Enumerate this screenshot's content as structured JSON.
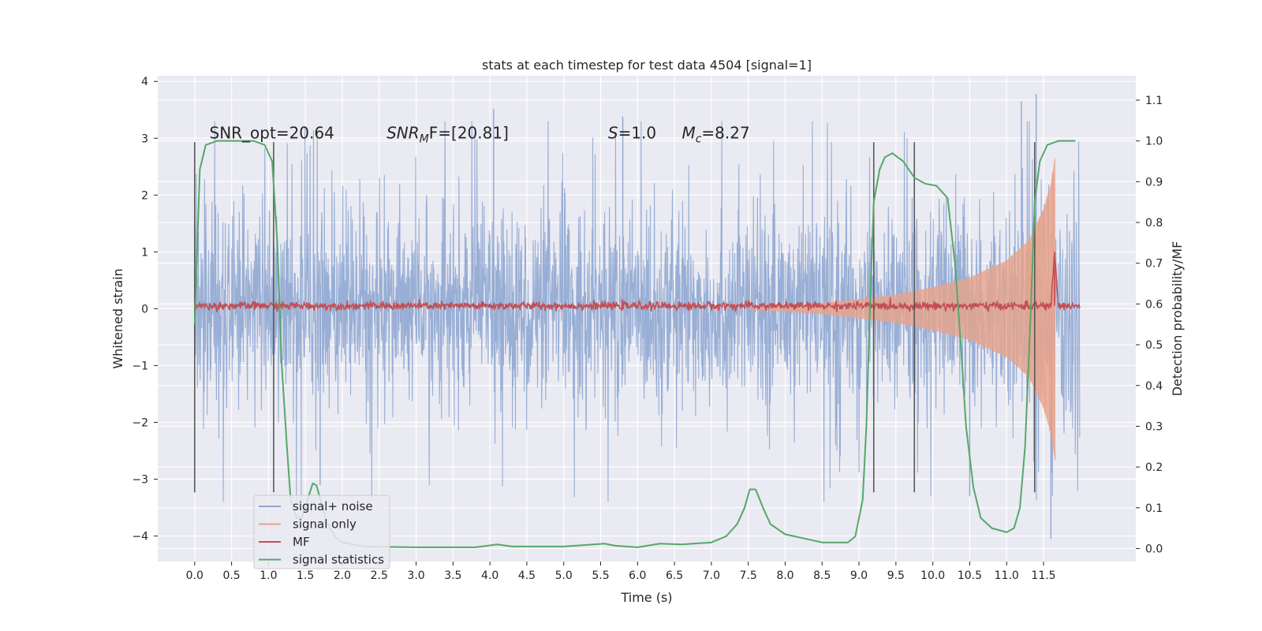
{
  "chart_data": {
    "type": "line",
    "title": "stats at each timestep for test data 4504 [signal=1]",
    "xlabel": "Time (s)",
    "ylabel": "Whitened strain",
    "y2label": "Detection probability/MF",
    "xlim": [
      -0.5,
      12.75
    ],
    "ylim": [
      -4.45,
      4.1
    ],
    "y2lim": [
      -0.032,
      1.16
    ],
    "x_ticks": [
      0.0,
      0.5,
      1.0,
      1.5,
      2.0,
      2.5,
      3.0,
      3.5,
      4.0,
      4.5,
      5.0,
      5.5,
      6.0,
      6.5,
      7.0,
      7.5,
      8.0,
      8.5,
      9.0,
      9.5,
      10.0,
      10.5,
      11.0,
      11.5
    ],
    "x_tick_labels": [
      "0.0",
      "0.5",
      "1.0",
      "1.5",
      "2.0",
      "2.5",
      "3.0",
      "3.5",
      "4.0",
      "4.5",
      "5.0",
      "5.5",
      "6.0",
      "6.5",
      "7.0",
      "7.5",
      "8.0",
      "8.5",
      "9.0",
      "9.5",
      "10.0",
      "10.5",
      "11.0",
      "11.5"
    ],
    "y_ticks": [
      -4,
      -3,
      -2,
      -1,
      0,
      1,
      2,
      3,
      4
    ],
    "y_tick_labels": [
      "−4",
      "−3",
      "−2",
      "−1",
      "0",
      "1",
      "2",
      "3",
      "4"
    ],
    "y2_ticks": [
      0.0,
      0.1,
      0.2,
      0.3,
      0.4,
      0.5,
      0.6,
      0.7,
      0.8,
      0.9,
      1.0,
      1.1
    ],
    "y2_tick_labels": [
      "0.0",
      "0.1",
      "0.2",
      "0.3",
      "0.4",
      "0.5",
      "0.6",
      "0.7",
      "0.8",
      "0.9",
      "1.0",
      "1.1"
    ],
    "grid": true,
    "legend_position": "lower-left",
    "annotations": [
      {
        "text": "SNR_opt=20.64",
        "x": 0.2,
        "y": 3.0
      },
      {
        "text": "SNR",
        "sub": "M",
        "suffix": "F=[20.81]",
        "x": 2.6,
        "y": 3.0
      },
      {
        "text": "S",
        "suffix": "=1.0",
        "x": 5.6,
        "y": 3.0
      },
      {
        "text": "M",
        "sub": "c",
        "suffix": "=8.27",
        "x": 6.6,
        "y": 3.0
      }
    ],
    "vlines": [
      0.0,
      1.07,
      9.2,
      9.75,
      11.38
    ],
    "vline_range": [
      -3.23,
      2.93
    ],
    "series": [
      {
        "name": "signal+ noise",
        "color": "#8fa7d1",
        "style": "noise-band",
        "x_range": [
          0.0,
          11.99
        ],
        "envelope_1sigma": 1.0,
        "notable_peaks": [
          {
            "x": 4.05,
            "y": 3.52
          },
          {
            "x": 5.8,
            "y": 3.38
          },
          {
            "x": 11.2,
            "y": 3.65
          },
          {
            "x": 11.4,
            "y": 3.78
          },
          {
            "x": 11.6,
            "y": -4.05
          },
          {
            "x": 10.5,
            "y": -3.3
          },
          {
            "x": 1.7,
            "y": -3.1
          }
        ]
      },
      {
        "name": "signal only",
        "color": "#e8a38a",
        "style": "chirp",
        "x_range": [
          7.5,
          11.66
        ],
        "amplitude": [
          [
            7.5,
            0.02
          ],
          [
            8.0,
            0.05
          ],
          [
            8.5,
            0.1
          ],
          [
            9.0,
            0.17
          ],
          [
            9.5,
            0.25
          ],
          [
            10.0,
            0.38
          ],
          [
            10.5,
            0.55
          ],
          [
            11.0,
            0.85
          ],
          [
            11.3,
            1.2
          ],
          [
            11.5,
            1.75
          ],
          [
            11.6,
            2.2
          ],
          [
            11.65,
            2.65
          ]
        ]
      },
      {
        "name": "MF",
        "color": "#c44e52",
        "style": "noisy-line",
        "x_range": [
          0.0,
          11.99
        ],
        "level": 0.05,
        "spike": {
          "x": 11.65,
          "y": 1.0
        }
      },
      {
        "name": "signal statistics",
        "color": "#55a868",
        "style": "line",
        "axis": "right",
        "points": [
          [
            0.0,
            0.55
          ],
          [
            0.07,
            0.93
          ],
          [
            0.15,
            0.99
          ],
          [
            0.3,
            1.0
          ],
          [
            0.5,
            1.0
          ],
          [
            0.8,
            1.0
          ],
          [
            0.95,
            0.99
          ],
          [
            1.05,
            0.95
          ],
          [
            1.12,
            0.75
          ],
          [
            1.18,
            0.45
          ],
          [
            1.25,
            0.25
          ],
          [
            1.3,
            0.12
          ],
          [
            1.38,
            0.075
          ],
          [
            1.45,
            0.075
          ],
          [
            1.53,
            0.12
          ],
          [
            1.6,
            0.16
          ],
          [
            1.65,
            0.155
          ],
          [
            1.72,
            0.11
          ],
          [
            1.8,
            0.06
          ],
          [
            1.9,
            0.03
          ],
          [
            2.0,
            0.015
          ],
          [
            2.3,
            0.005
          ],
          [
            3.0,
            0.003
          ],
          [
            3.8,
            0.003
          ],
          [
            4.1,
            0.01
          ],
          [
            4.3,
            0.005
          ],
          [
            5.0,
            0.005
          ],
          [
            5.55,
            0.012
          ],
          [
            5.7,
            0.007
          ],
          [
            6.0,
            0.003
          ],
          [
            6.3,
            0.012
          ],
          [
            6.6,
            0.01
          ],
          [
            7.0,
            0.015
          ],
          [
            7.2,
            0.03
          ],
          [
            7.35,
            0.06
          ],
          [
            7.45,
            0.1
          ],
          [
            7.52,
            0.145
          ],
          [
            7.6,
            0.145
          ],
          [
            7.7,
            0.1
          ],
          [
            7.8,
            0.06
          ],
          [
            8.0,
            0.035
          ],
          [
            8.5,
            0.015
          ],
          [
            8.85,
            0.015
          ],
          [
            8.95,
            0.03
          ],
          [
            9.05,
            0.12
          ],
          [
            9.1,
            0.3
          ],
          [
            9.15,
            0.6
          ],
          [
            9.2,
            0.85
          ],
          [
            9.28,
            0.93
          ],
          [
            9.35,
            0.96
          ],
          [
            9.45,
            0.97
          ],
          [
            9.6,
            0.95
          ],
          [
            9.75,
            0.91
          ],
          [
            9.9,
            0.895
          ],
          [
            10.05,
            0.89
          ],
          [
            10.2,
            0.86
          ],
          [
            10.3,
            0.7
          ],
          [
            10.38,
            0.5
          ],
          [
            10.45,
            0.3
          ],
          [
            10.55,
            0.15
          ],
          [
            10.65,
            0.075
          ],
          [
            10.8,
            0.05
          ],
          [
            11.0,
            0.04
          ],
          [
            11.1,
            0.05
          ],
          [
            11.18,
            0.1
          ],
          [
            11.25,
            0.25
          ],
          [
            11.32,
            0.55
          ],
          [
            11.38,
            0.85
          ],
          [
            11.45,
            0.95
          ],
          [
            11.55,
            0.99
          ],
          [
            11.7,
            1.0
          ],
          [
            11.93,
            1.0
          ]
        ]
      }
    ]
  }
}
